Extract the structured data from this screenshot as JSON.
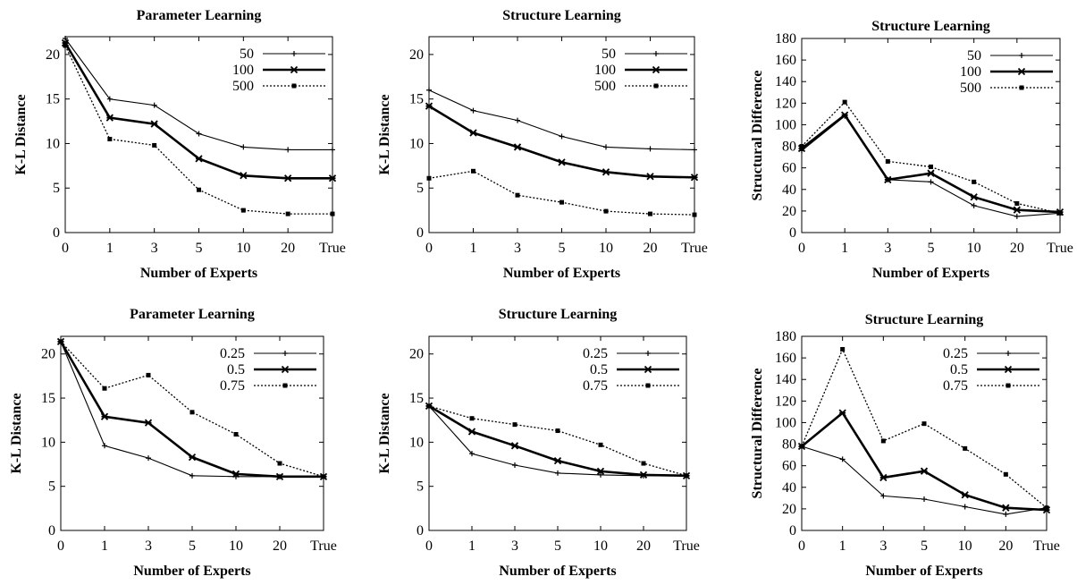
{
  "chart_data": [
    {
      "type": "line",
      "title": "Parameter Learning",
      "xlabel": "Number of Experts",
      "ylabel": "K-L Distance",
      "categories": [
        "0",
        "1",
        "3",
        "5",
        "10",
        "20",
        "True"
      ],
      "ylim": [
        0,
        22
      ],
      "yticks": [
        0,
        5,
        10,
        15,
        20
      ],
      "legend_position": "top-right",
      "series": [
        {
          "name": "50",
          "style": "solid",
          "values": [
            21.8,
            15.0,
            14.3,
            11.1,
            9.6,
            9.3,
            9.3
          ]
        },
        {
          "name": "100",
          "style": "bold",
          "values": [
            21.3,
            12.9,
            12.2,
            8.3,
            6.4,
            6.1,
            6.1
          ]
        },
        {
          "name": "500",
          "style": "dotted",
          "values": [
            21.0,
            10.5,
            9.8,
            4.8,
            2.5,
            2.1,
            2.1
          ]
        }
      ]
    },
    {
      "type": "line",
      "title": "Structure Learning",
      "xlabel": "Number of Experts",
      "ylabel": "K-L Distance",
      "categories": [
        "0",
        "1",
        "3",
        "5",
        "10",
        "20",
        "True"
      ],
      "ylim": [
        0,
        22
      ],
      "yticks": [
        0,
        5,
        10,
        15,
        20
      ],
      "legend_position": "top-right",
      "series": [
        {
          "name": "50",
          "style": "solid",
          "values": [
            16.0,
            13.7,
            12.6,
            10.8,
            9.6,
            9.4,
            9.3
          ]
        },
        {
          "name": "100",
          "style": "bold",
          "values": [
            14.2,
            11.2,
            9.6,
            7.9,
            6.8,
            6.3,
            6.2
          ]
        },
        {
          "name": "500",
          "style": "dotted",
          "values": [
            6.1,
            6.9,
            4.2,
            3.4,
            2.4,
            2.1,
            2.0
          ]
        }
      ]
    },
    {
      "type": "line",
      "title": "Structure Learning",
      "xlabel": "Number of Experts",
      "ylabel": "Structural Difference",
      "categories": [
        "0",
        "1",
        "3",
        "5",
        "10",
        "20",
        "True"
      ],
      "ylim": [
        0,
        180
      ],
      "yticks": [
        0,
        20,
        40,
        60,
        80,
        100,
        120,
        140,
        160,
        180
      ],
      "legend_position": "top-right",
      "series": [
        {
          "name": "50",
          "style": "solid",
          "values": [
            76,
            108,
            49,
            47,
            25,
            15,
            18
          ]
        },
        {
          "name": "100",
          "style": "bold",
          "values": [
            78,
            109,
            49,
            55,
            33,
            21,
            19
          ]
        },
        {
          "name": "500",
          "style": "dotted",
          "values": [
            80,
            121,
            66,
            61,
            47,
            27,
            18
          ]
        }
      ]
    },
    {
      "type": "line",
      "title": "Parameter Learning",
      "xlabel": "Number of Experts",
      "ylabel": "K-L Distance",
      "categories": [
        "0",
        "1",
        "3",
        "5",
        "10",
        "20",
        "True"
      ],
      "ylim": [
        0,
        22
      ],
      "yticks": [
        0,
        5,
        10,
        15,
        20
      ],
      "legend_position": "top-right",
      "series": [
        {
          "name": "0.25",
          "style": "solid",
          "values": [
            21.4,
            9.6,
            8.2,
            6.2,
            6.1,
            6.1,
            6.1
          ]
        },
        {
          "name": "0.5",
          "style": "bold",
          "values": [
            21.4,
            12.9,
            12.2,
            8.3,
            6.4,
            6.1,
            6.1
          ]
        },
        {
          "name": "0.75",
          "style": "dotted",
          "values": [
            21.4,
            16.1,
            17.6,
            13.4,
            10.9,
            7.6,
            6.1
          ]
        }
      ]
    },
    {
      "type": "line",
      "title": "Structure Learning",
      "xlabel": "Number of Experts",
      "ylabel": "K-L Distance",
      "categories": [
        "0",
        "1",
        "3",
        "5",
        "10",
        "20",
        "True"
      ],
      "ylim": [
        0,
        22
      ],
      "yticks": [
        0,
        5,
        10,
        15,
        20
      ],
      "legend_position": "top-right",
      "series": [
        {
          "name": "0.25",
          "style": "solid",
          "values": [
            14.1,
            8.7,
            7.4,
            6.5,
            6.3,
            6.2,
            6.2
          ]
        },
        {
          "name": "0.5",
          "style": "bold",
          "values": [
            14.1,
            11.2,
            9.6,
            7.9,
            6.7,
            6.3,
            6.2
          ]
        },
        {
          "name": "0.75",
          "style": "dotted",
          "values": [
            14.1,
            12.7,
            12.0,
            11.3,
            9.7,
            7.6,
            6.2
          ]
        }
      ]
    },
    {
      "type": "line",
      "title": "Structure Learning",
      "xlabel": "Number of Experts",
      "ylabel": "Structural Difference",
      "categories": [
        "0",
        "1",
        "3",
        "5",
        "10",
        "20",
        "True"
      ],
      "ylim": [
        0,
        180
      ],
      "yticks": [
        0,
        20,
        40,
        60,
        80,
        100,
        120,
        140,
        160,
        180
      ],
      "legend_position": "top-right",
      "series": [
        {
          "name": "0.25",
          "style": "solid",
          "values": [
            78,
            66,
            32,
            29,
            22,
            15,
            21
          ]
        },
        {
          "name": "0.5",
          "style": "bold",
          "values": [
            78,
            109,
            49,
            55,
            33,
            21,
            19
          ]
        },
        {
          "name": "0.75",
          "style": "dotted",
          "values": [
            78,
            168,
            83,
            99,
            76,
            52,
            21
          ]
        }
      ]
    }
  ]
}
